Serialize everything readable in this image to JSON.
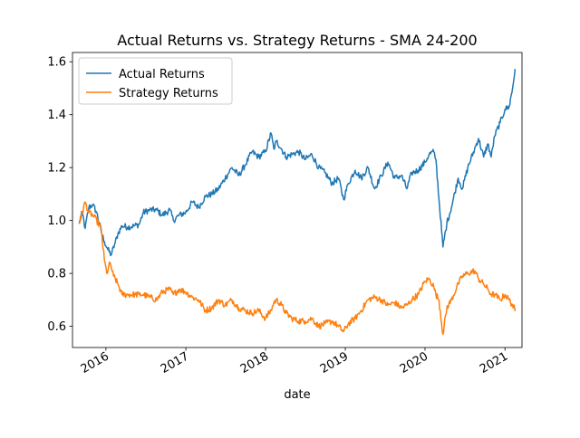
{
  "chart_data": {
    "type": "line",
    "title": "Actual Returns vs. Strategy Returns - SMA 24-200",
    "xlabel": "date",
    "ylabel": "",
    "x_domain": [
      "2015-08-15",
      "2021-03-01"
    ],
    "xlim": [
      "2015-08-01",
      "2021-03-20"
    ],
    "ylim": [
      0.52,
      1.635
    ],
    "x_ticks": [
      {
        "date": "2016-01-01",
        "label": "2016"
      },
      {
        "date": "2017-01-01",
        "label": "2017"
      },
      {
        "date": "2018-01-01",
        "label": "2018"
      },
      {
        "date": "2019-01-01",
        "label": "2019"
      },
      {
        "date": "2020-01-01",
        "label": "2020"
      },
      {
        "date": "2021-01-01",
        "label": "2021"
      }
    ],
    "y_ticks": [
      "0.6",
      "0.8",
      "1.0",
      "1.2",
      "1.4",
      "1.6"
    ],
    "grid": false,
    "legend_position": "top-left",
    "series": [
      {
        "name": "Actual Returns",
        "color": "#1f77b4",
        "points": [
          [
            "2015-09-01",
            0.99
          ],
          [
            "2015-09-15",
            1.03
          ],
          [
            "2015-09-28",
            0.97
          ],
          [
            "2015-10-15",
            1.05
          ],
          [
            "2015-11-01",
            1.06
          ],
          [
            "2015-11-20",
            1.03
          ],
          [
            "2015-12-10",
            0.96
          ],
          [
            "2015-12-25",
            0.92
          ],
          [
            "2016-01-10",
            0.89
          ],
          [
            "2016-01-25",
            0.87
          ],
          [
            "2016-02-10",
            0.91
          ],
          [
            "2016-02-25",
            0.95
          ],
          [
            "2016-03-15",
            0.98
          ],
          [
            "2016-04-10",
            0.975
          ],
          [
            "2016-05-10",
            0.98
          ],
          [
            "2016-06-01",
            0.985
          ],
          [
            "2016-06-20",
            1.03
          ],
          [
            "2016-07-20",
            1.04
          ],
          [
            "2016-08-20",
            1.04
          ],
          [
            "2016-09-15",
            1.02
          ],
          [
            "2016-10-20",
            1.04
          ],
          [
            "2016-11-05",
            1.0
          ],
          [
            "2016-12-01",
            1.02
          ],
          [
            "2016-12-31",
            1.03
          ],
          [
            "2017-01-31",
            1.07
          ],
          [
            "2017-02-28",
            1.05
          ],
          [
            "2017-03-31",
            1.09
          ],
          [
            "2017-04-30",
            1.1
          ],
          [
            "2017-05-31",
            1.12
          ],
          [
            "2017-06-30",
            1.16
          ],
          [
            "2017-07-31",
            1.2
          ],
          [
            "2017-08-31",
            1.17
          ],
          [
            "2017-09-30",
            1.21
          ],
          [
            "2017-10-31",
            1.26
          ],
          [
            "2017-11-30",
            1.24
          ],
          [
            "2017-12-31",
            1.26
          ],
          [
            "2018-01-26",
            1.33
          ],
          [
            "2018-02-08",
            1.27
          ],
          [
            "2018-02-20",
            1.3
          ],
          [
            "2018-03-15",
            1.27
          ],
          [
            "2018-04-05",
            1.24
          ],
          [
            "2018-05-01",
            1.25
          ],
          [
            "2018-06-01",
            1.26
          ],
          [
            "2018-07-01",
            1.23
          ],
          [
            "2018-08-01",
            1.25
          ],
          [
            "2018-09-01",
            1.2
          ],
          [
            "2018-10-01",
            1.18
          ],
          [
            "2018-11-01",
            1.14
          ],
          [
            "2018-12-01",
            1.16
          ],
          [
            "2018-12-24",
            1.08
          ],
          [
            "2019-01-15",
            1.14
          ],
          [
            "2019-02-15",
            1.19
          ],
          [
            "2019-03-15",
            1.16
          ],
          [
            "2019-04-15",
            1.2
          ],
          [
            "2019-05-15",
            1.12
          ],
          [
            "2019-06-15",
            1.17
          ],
          [
            "2019-07-15",
            1.22
          ],
          [
            "2019-08-15",
            1.16
          ],
          [
            "2019-09-15",
            1.17
          ],
          [
            "2019-10-10",
            1.12
          ],
          [
            "2019-11-01",
            1.18
          ],
          [
            "2019-12-01",
            1.19
          ],
          [
            "2020-01-01",
            1.22
          ],
          [
            "2020-01-20",
            1.25
          ],
          [
            "2020-02-10",
            1.26
          ],
          [
            "2020-02-20",
            1.23
          ],
          [
            "2020-03-05",
            1.08
          ],
          [
            "2020-03-23",
            0.9
          ],
          [
            "2020-04-10",
            0.99
          ],
          [
            "2020-05-01",
            1.05
          ],
          [
            "2020-06-01",
            1.16
          ],
          [
            "2020-06-20",
            1.12
          ],
          [
            "2020-07-15",
            1.2
          ],
          [
            "2020-08-15",
            1.27
          ],
          [
            "2020-09-02",
            1.31
          ],
          [
            "2020-09-25",
            1.24
          ],
          [
            "2020-10-15",
            1.29
          ],
          [
            "2020-10-30",
            1.24
          ],
          [
            "2020-11-15",
            1.32
          ],
          [
            "2020-12-10",
            1.37
          ],
          [
            "2021-01-01",
            1.42
          ],
          [
            "2021-01-20",
            1.43
          ],
          [
            "2021-02-05",
            1.5
          ],
          [
            "2021-02-16",
            1.57
          ]
        ]
      },
      {
        "name": "Strategy Returns",
        "color": "#ff7f0e",
        "points": [
          [
            "2015-09-01",
            0.99
          ],
          [
            "2015-09-15",
            1.03
          ],
          [
            "2015-09-28",
            1.07
          ],
          [
            "2015-10-15",
            1.03
          ],
          [
            "2015-11-01",
            1.02
          ],
          [
            "2015-11-20",
            1.0
          ],
          [
            "2015-12-10",
            0.97
          ],
          [
            "2015-12-25",
            0.85
          ],
          [
            "2016-01-05",
            0.8
          ],
          [
            "2016-01-20",
            0.84
          ],
          [
            "2016-02-05",
            0.79
          ],
          [
            "2016-02-25",
            0.76
          ],
          [
            "2016-03-15",
            0.72
          ],
          [
            "2016-04-15",
            0.72
          ],
          [
            "2016-05-15",
            0.72
          ],
          [
            "2016-06-01",
            0.72
          ],
          [
            "2016-06-20",
            0.72
          ],
          [
            "2016-07-20",
            0.71
          ],
          [
            "2016-08-20",
            0.7
          ],
          [
            "2016-09-15",
            0.73
          ],
          [
            "2016-10-20",
            0.74
          ],
          [
            "2016-11-05",
            0.72
          ],
          [
            "2016-12-01",
            0.74
          ],
          [
            "2016-12-31",
            0.73
          ],
          [
            "2017-01-31",
            0.71
          ],
          [
            "2017-02-28",
            0.7
          ],
          [
            "2017-03-31",
            0.66
          ],
          [
            "2017-04-30",
            0.67
          ],
          [
            "2017-05-31",
            0.7
          ],
          [
            "2017-06-30",
            0.68
          ],
          [
            "2017-07-31",
            0.7
          ],
          [
            "2017-08-31",
            0.67
          ],
          [
            "2017-09-30",
            0.66
          ],
          [
            "2017-10-31",
            0.65
          ],
          [
            "2017-11-30",
            0.66
          ],
          [
            "2017-12-31",
            0.63
          ],
          [
            "2018-01-26",
            0.66
          ],
          [
            "2018-02-08",
            0.69
          ],
          [
            "2018-02-20",
            0.7
          ],
          [
            "2018-03-15",
            0.68
          ],
          [
            "2018-04-05",
            0.65
          ],
          [
            "2018-05-01",
            0.63
          ],
          [
            "2018-06-01",
            0.62
          ],
          [
            "2018-07-01",
            0.62
          ],
          [
            "2018-08-01",
            0.63
          ],
          [
            "2018-09-01",
            0.6
          ],
          [
            "2018-10-01",
            0.61
          ],
          [
            "2018-11-01",
            0.62
          ],
          [
            "2018-12-01",
            0.6
          ],
          [
            "2018-12-24",
            0.58
          ],
          [
            "2019-01-15",
            0.61
          ],
          [
            "2019-02-15",
            0.63
          ],
          [
            "2019-03-15",
            0.66
          ],
          [
            "2019-04-15",
            0.7
          ],
          [
            "2019-05-15",
            0.71
          ],
          [
            "2019-06-15",
            0.7
          ],
          [
            "2019-07-15",
            0.68
          ],
          [
            "2019-08-15",
            0.69
          ],
          [
            "2019-09-15",
            0.67
          ],
          [
            "2019-10-10",
            0.68
          ],
          [
            "2019-11-01",
            0.7
          ],
          [
            "2019-12-01",
            0.72
          ],
          [
            "2020-01-01",
            0.77
          ],
          [
            "2020-01-20",
            0.78
          ],
          [
            "2020-02-10",
            0.75
          ],
          [
            "2020-02-20",
            0.72
          ],
          [
            "2020-03-05",
            0.7
          ],
          [
            "2020-03-23",
            0.57
          ],
          [
            "2020-04-10",
            0.67
          ],
          [
            "2020-05-01",
            0.7
          ],
          [
            "2020-06-01",
            0.76
          ],
          [
            "2020-06-20",
            0.79
          ],
          [
            "2020-07-15",
            0.8
          ],
          [
            "2020-08-15",
            0.81
          ],
          [
            "2020-09-02",
            0.78
          ],
          [
            "2020-09-25",
            0.76
          ],
          [
            "2020-10-15",
            0.74
          ],
          [
            "2020-10-30",
            0.72
          ],
          [
            "2020-11-15",
            0.72
          ],
          [
            "2020-12-10",
            0.7
          ],
          [
            "2021-01-01",
            0.72
          ],
          [
            "2021-01-20",
            0.7
          ],
          [
            "2021-02-05",
            0.68
          ],
          [
            "2021-02-16",
            0.66
          ]
        ]
      }
    ]
  }
}
